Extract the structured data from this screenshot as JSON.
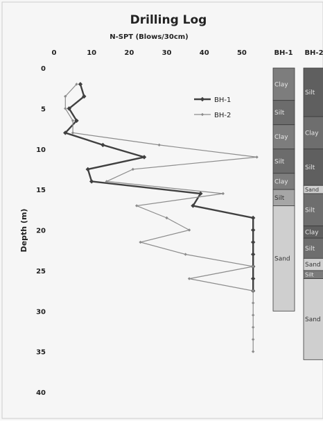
{
  "chart_data": {
    "type": "line",
    "title": "Drilling Log",
    "xlabel": "N-SPT (Blows/30cm)",
    "ylabel": "Depth (m)",
    "xlim": [
      0,
      55
    ],
    "ylim": [
      0,
      40
    ],
    "x_ticks": [
      0,
      10,
      20,
      30,
      40,
      50
    ],
    "y_ticks": [
      0,
      5,
      10,
      15,
      20,
      25,
      30,
      35,
      40
    ],
    "grid": false,
    "legend": "upper-right",
    "series": [
      {
        "name": "BH-1",
        "color": "#404040",
        "marker": "diamond",
        "points": [
          {
            "x": 7,
            "y": 2
          },
          {
            "x": 8,
            "y": 3.5
          },
          {
            "x": 4,
            "y": 5
          },
          {
            "x": 6,
            "y": 6.5
          },
          {
            "x": 3,
            "y": 8
          },
          {
            "x": 13,
            "y": 9.5
          },
          {
            "x": 24,
            "y": 11
          },
          {
            "x": 9,
            "y": 12.5
          },
          {
            "x": 10,
            "y": 14
          },
          {
            "x": 39,
            "y": 15.5
          },
          {
            "x": 37,
            "y": 17
          },
          {
            "x": 53,
            "y": 18.5
          },
          {
            "x": 53,
            "y": 20
          },
          {
            "x": 53,
            "y": 21.5
          },
          {
            "x": 53,
            "y": 23
          },
          {
            "x": 53,
            "y": 24.5
          },
          {
            "x": 53,
            "y": 26
          },
          {
            "x": 53,
            "y": 27.5
          }
        ]
      },
      {
        "name": "BH-2",
        "color": "#8c8c8c",
        "marker": "diamond-small",
        "points": [
          {
            "x": 6,
            "y": 2
          },
          {
            "x": 3,
            "y": 3.5
          },
          {
            "x": 3,
            "y": 5
          },
          {
            "x": 5,
            "y": 6.5
          },
          {
            "x": 5,
            "y": 8
          },
          {
            "x": 28,
            "y": 9.5
          },
          {
            "x": 54,
            "y": 11
          },
          {
            "x": 21,
            "y": 12.5
          },
          {
            "x": 14,
            "y": 14
          },
          {
            "x": 45,
            "y": 15.5
          },
          {
            "x": 22,
            "y": 17
          },
          {
            "x": 30,
            "y": 18.5
          },
          {
            "x": 36,
            "y": 20
          },
          {
            "x": 23,
            "y": 21.5
          },
          {
            "x": 35,
            "y": 23
          },
          {
            "x": 53,
            "y": 24.5
          },
          {
            "x": 36,
            "y": 26
          },
          {
            "x": 53,
            "y": 27.5
          },
          {
            "x": 53,
            "y": 29
          },
          {
            "x": 53,
            "y": 30.5
          },
          {
            "x": 53,
            "y": 32
          },
          {
            "x": 53,
            "y": 33.5
          },
          {
            "x": 53,
            "y": 35
          }
        ]
      }
    ],
    "boreholes": [
      {
        "name": "BH-1",
        "layers": [
          {
            "label": "Clay",
            "top": 0,
            "bottom": 4,
            "color": "#7d7d7d"
          },
          {
            "label": "Silt",
            "top": 4,
            "bottom": 7,
            "color": "#6c6c6c"
          },
          {
            "label": "Clay",
            "top": 7,
            "bottom": 10,
            "color": "#7d7d7d"
          },
          {
            "label": "Silt",
            "top": 10,
            "bottom": 13,
            "color": "#6c6c6c"
          },
          {
            "label": "Clay",
            "top": 13,
            "bottom": 15,
            "color": "#7d7d7d"
          },
          {
            "label": "Silt",
            "top": 15,
            "bottom": 17,
            "color": "#a6a6a6"
          },
          {
            "label": "Sand",
            "top": 17,
            "bottom": 30,
            "color": "#cfcfcf"
          }
        ]
      },
      {
        "name": "BH-2",
        "layers": [
          {
            "label": "Silt",
            "top": 0,
            "bottom": 6,
            "color": "#5f5f5f"
          },
          {
            "label": "Clay",
            "top": 6,
            "bottom": 10,
            "color": "#6e6e6e"
          },
          {
            "label": "Silt",
            "top": 10,
            "bottom": 14.5,
            "color": "#5f5f5f"
          },
          {
            "label": "Sand",
            "top": 14.5,
            "bottom": 15.5,
            "color": "#cfcfcf"
          },
          {
            "label": "Silt",
            "top": 15.5,
            "bottom": 19.5,
            "color": "#6e6e6e"
          },
          {
            "label": "Clay",
            "top": 19.5,
            "bottom": 21,
            "color": "#5f5f5f"
          },
          {
            "label": "Silt",
            "top": 21,
            "bottom": 23.5,
            "color": "#6e6e6e"
          },
          {
            "label": "Sand",
            "top": 23.5,
            "bottom": 25,
            "color": "#cfcfcf"
          },
          {
            "label": "Silt",
            "top": 25,
            "bottom": 26,
            "color": "#7a7a7a"
          },
          {
            "label": "Sand",
            "top": 26,
            "bottom": 36,
            "color": "#cfcfcf"
          }
        ]
      }
    ]
  }
}
